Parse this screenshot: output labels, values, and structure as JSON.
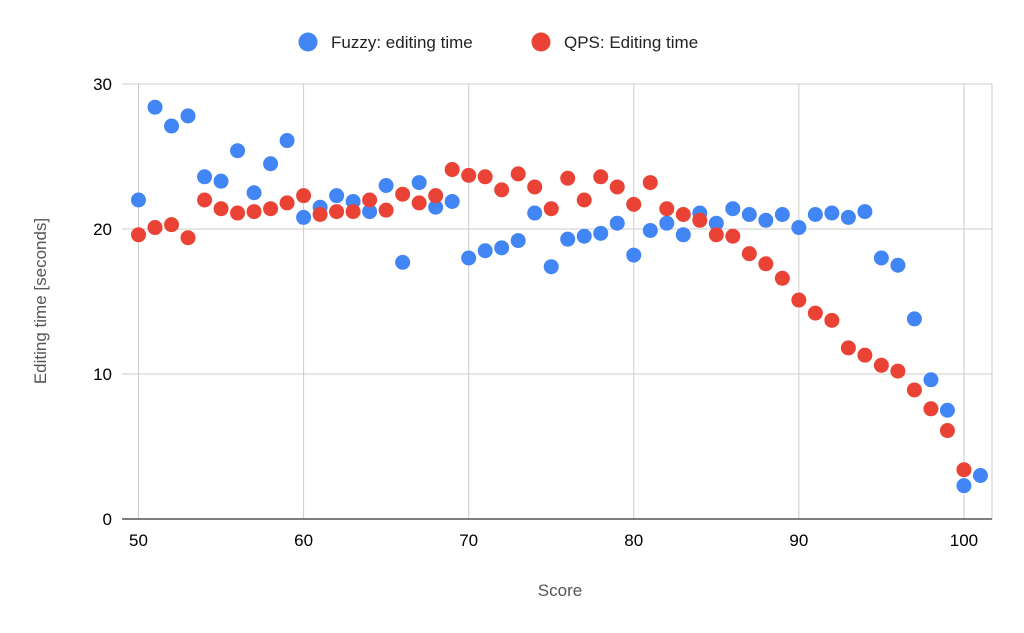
{
  "chart_data": {
    "type": "scatter",
    "title": "",
    "xlabel": "Score",
    "ylabel": "Editing time [seconds]",
    "xlim": [
      49,
      101.7
    ],
    "ylim": [
      0,
      30
    ],
    "x_ticks": [
      50,
      60,
      70,
      80,
      90,
      100
    ],
    "y_ticks": [
      0,
      10,
      20,
      30
    ],
    "grid": true,
    "legend_position": "top-center",
    "series": [
      {
        "name": "Fuzzy: editing time",
        "color": "#4285F4",
        "points": [
          [
            50,
            22.0
          ],
          [
            51,
            28.4
          ],
          [
            52,
            27.1
          ],
          [
            53,
            27.8
          ],
          [
            54,
            23.6
          ],
          [
            55,
            23.3
          ],
          [
            56,
            25.4
          ],
          [
            57,
            22.5
          ],
          [
            58,
            24.5
          ],
          [
            59,
            26.1
          ],
          [
            60,
            20.8
          ],
          [
            61,
            21.5
          ],
          [
            62,
            22.3
          ],
          [
            63,
            21.9
          ],
          [
            64,
            21.2
          ],
          [
            65,
            23.0
          ],
          [
            66,
            17.7
          ],
          [
            67,
            23.2
          ],
          [
            68,
            21.5
          ],
          [
            69,
            21.9
          ],
          [
            70,
            18.0
          ],
          [
            71,
            18.5
          ],
          [
            72,
            18.7
          ],
          [
            73,
            19.2
          ],
          [
            74,
            21.1
          ],
          [
            75,
            17.4
          ],
          [
            76,
            19.3
          ],
          [
            77,
            19.5
          ],
          [
            78,
            19.7
          ],
          [
            79,
            20.4
          ],
          [
            80,
            18.2
          ],
          [
            81,
            19.9
          ],
          [
            82,
            20.4
          ],
          [
            83,
            19.6
          ],
          [
            84,
            21.1
          ],
          [
            85,
            20.4
          ],
          [
            86,
            21.4
          ],
          [
            87,
            21.0
          ],
          [
            88,
            20.6
          ],
          [
            89,
            21.0
          ],
          [
            90,
            20.1
          ],
          [
            91,
            21.0
          ],
          [
            92,
            21.1
          ],
          [
            93,
            20.8
          ],
          [
            94,
            21.2
          ],
          [
            95,
            18.0
          ],
          [
            96,
            17.5
          ],
          [
            97,
            13.8
          ],
          [
            98,
            9.6
          ],
          [
            99,
            7.5
          ],
          [
            100,
            2.3
          ],
          [
            101,
            3.0
          ]
        ]
      },
      {
        "name": "QPS: Editing time",
        "color": "#EA4335",
        "points": [
          [
            50,
            19.6
          ],
          [
            51,
            20.1
          ],
          [
            52,
            20.3
          ],
          [
            53,
            19.4
          ],
          [
            54,
            22.0
          ],
          [
            55,
            21.4
          ],
          [
            56,
            21.1
          ],
          [
            57,
            21.2
          ],
          [
            58,
            21.4
          ],
          [
            59,
            21.8
          ],
          [
            60,
            22.3
          ],
          [
            61,
            21.0
          ],
          [
            62,
            21.2
          ],
          [
            63,
            21.2
          ],
          [
            64,
            22.0
          ],
          [
            65,
            21.3
          ],
          [
            66,
            22.4
          ],
          [
            67,
            21.8
          ],
          [
            68,
            22.3
          ],
          [
            69,
            24.1
          ],
          [
            70,
            23.7
          ],
          [
            71,
            23.6
          ],
          [
            72,
            22.7
          ],
          [
            73,
            23.8
          ],
          [
            74,
            22.9
          ],
          [
            75,
            21.4
          ],
          [
            76,
            23.5
          ],
          [
            77,
            22.0
          ],
          [
            78,
            23.6
          ],
          [
            79,
            22.9
          ],
          [
            80,
            21.7
          ],
          [
            81,
            23.2
          ],
          [
            82,
            21.4
          ],
          [
            83,
            21.0
          ],
          [
            84,
            20.6
          ],
          [
            85,
            19.6
          ],
          [
            86,
            19.5
          ],
          [
            87,
            18.3
          ],
          [
            88,
            17.6
          ],
          [
            89,
            16.6
          ],
          [
            90,
            15.1
          ],
          [
            91,
            14.2
          ],
          [
            92,
            13.7
          ],
          [
            93,
            11.8
          ],
          [
            94,
            11.3
          ],
          [
            95,
            10.6
          ],
          [
            96,
            10.2
          ],
          [
            97,
            8.9
          ],
          [
            98,
            7.6
          ],
          [
            99,
            6.1
          ],
          [
            100,
            3.4
          ]
        ]
      }
    ]
  }
}
